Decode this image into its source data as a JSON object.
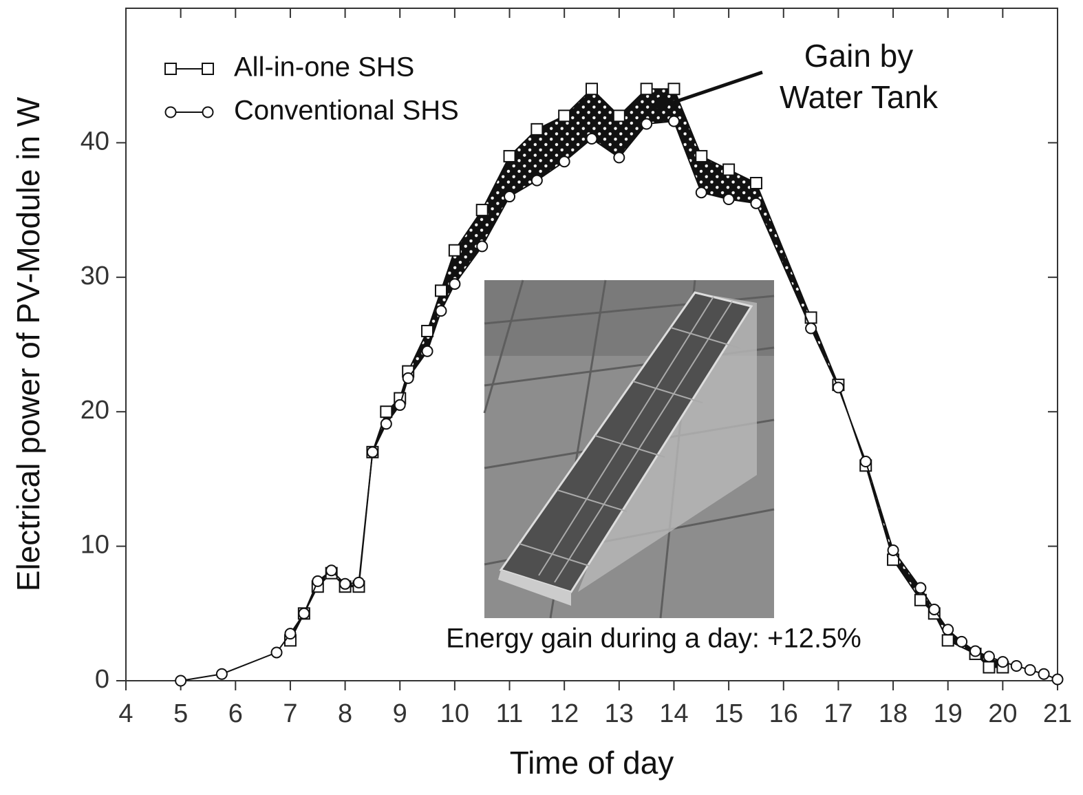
{
  "chart_data": {
    "type": "line",
    "xlabel": "Time of day",
    "ylabel": "Electrical power of  PV-Module in W",
    "xlim": [
      4,
      21
    ],
    "ylim": [
      0,
      50
    ],
    "xticks": [
      4,
      5,
      6,
      7,
      8,
      9,
      10,
      11,
      12,
      13,
      14,
      15,
      16,
      17,
      18,
      19,
      20,
      21
    ],
    "yticks": [
      0,
      10,
      20,
      30,
      40
    ],
    "legend": "top-left",
    "series": [
      {
        "name": "All-in-one SHS",
        "color": "#111111",
        "marker": "square",
        "x": [
          7,
          7.25,
          7.5,
          7.75,
          8,
          8.25,
          8.5,
          8.75,
          9,
          9.15,
          9.5,
          9.75,
          10,
          10.5,
          11,
          11.5,
          12,
          12.5,
          13,
          13.5,
          14,
          14.5,
          15,
          15.5,
          16.5,
          17,
          17.5,
          18,
          18.5,
          18.75,
          19,
          19.5,
          19.75,
          20
        ],
        "values": [
          3,
          5,
          7,
          8,
          7,
          7,
          17,
          20,
          21,
          23,
          26,
          29,
          32,
          35,
          39,
          41,
          42,
          44,
          42,
          44,
          44,
          39,
          38,
          37,
          27,
          22,
          16,
          9,
          6,
          5,
          3,
          2,
          1,
          1
        ]
      },
      {
        "name": "Conventional SHS",
        "color": "#111111",
        "marker": "circle",
        "x": [
          5,
          5.75,
          6.75,
          7,
          7.25,
          7.5,
          7.75,
          8,
          8.25,
          8.5,
          8.75,
          9,
          9.15,
          9.5,
          9.75,
          10,
          10.5,
          11,
          11.5,
          12,
          12.5,
          13,
          13.5,
          14,
          14.5,
          15,
          15.5,
          16.5,
          17,
          17.5,
          18,
          18.5,
          18.75,
          19,
          19.25,
          19.5,
          19.75,
          20,
          20.25,
          20.5,
          20.75,
          21
        ],
        "values": [
          0,
          0.5,
          2.1,
          3.5,
          5,
          7.4,
          8.2,
          7.2,
          7.3,
          17,
          19.1,
          20.5,
          22.5,
          24.5,
          27.5,
          29.5,
          32.3,
          36,
          37.2,
          38.6,
          40.3,
          38.9,
          41.4,
          41.6,
          36.3,
          35.8,
          35.5,
          26.2,
          21.8,
          16.3,
          9.7,
          6.9,
          5.3,
          3.8,
          2.9,
          2.2,
          1.8,
          1.4,
          1.1,
          0.8,
          0.5,
          0.1
        ]
      }
    ],
    "annotations": [
      {
        "lines": [
          "Gain by",
          "Water Tank"
        ]
      },
      {
        "lines": [
          "Energy gain during a day: +12.5%"
        ]
      }
    ]
  }
}
